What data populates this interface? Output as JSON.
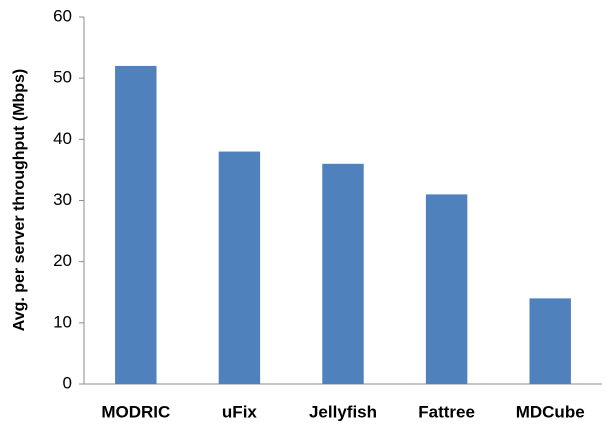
{
  "chart_data": {
    "type": "bar",
    "y_label": "Avg. per server throughput (Mbps)",
    "categories": [
      "MODRIC",
      "uFix",
      "Jellyfish",
      "Fattree",
      "MDCube"
    ],
    "values": [
      52,
      38,
      36,
      31,
      14
    ],
    "color": "#4f81bd",
    "ylim": [
      0,
      60
    ],
    "yticks": [
      0,
      10,
      20,
      30,
      40,
      50,
      60
    ],
    "grid": false
  }
}
